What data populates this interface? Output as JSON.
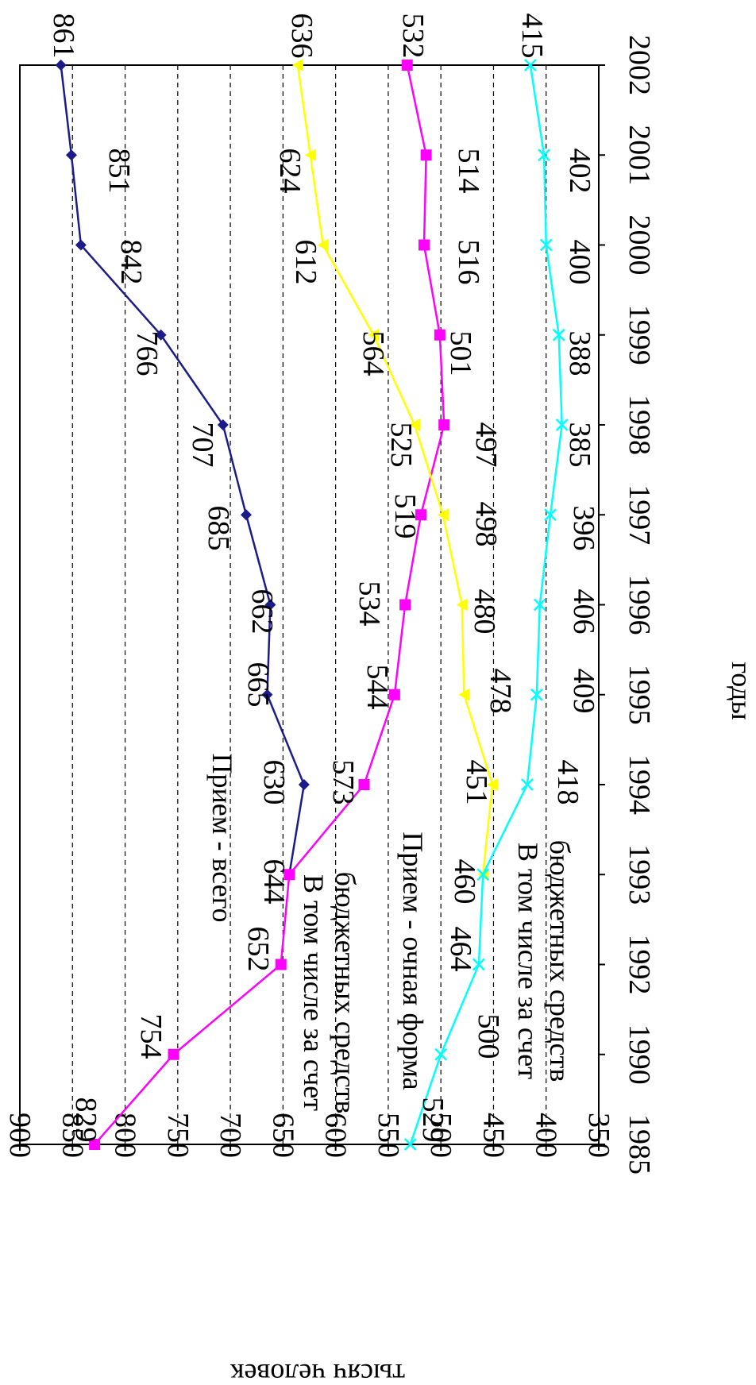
{
  "chart_data": {
    "type": "line",
    "orientation": "rotated-90-clockwise",
    "xlabel": "годы",
    "ylabel": "тысяч человек",
    "ylim": [
      350,
      900
    ],
    "yticks": [
      350,
      400,
      450,
      500,
      550,
      600,
      650,
      700,
      750,
      800,
      850,
      900
    ],
    "gridlines": [
      400,
      450,
      500,
      550,
      600,
      650,
      700,
      750,
      800,
      850
    ],
    "categories": [
      "1985",
      "1990",
      "1992",
      "1993",
      "1994",
      "1995",
      "1996",
      "1997",
      "1998",
      "1999",
      "2000",
      "2001",
      "2002"
    ],
    "series": [
      {
        "color": "#1b1b8a",
        "marker": "diamond",
        "values": [
          null,
          null,
          null,
          644,
          630,
          665,
          662,
          685,
          707,
          766,
          842,
          851,
          861
        ]
      },
      {
        "color": "#ff00ff",
        "marker": "square",
        "values": [
          829,
          754,
          652,
          644,
          573,
          544,
          534,
          519,
          497,
          501,
          516,
          514,
          532
        ]
      },
      {
        "color": "#ffff00",
        "marker": "triangle",
        "values": [
          null,
          null,
          null,
          460,
          451,
          478,
          480,
          498,
          525,
          564,
          612,
          624,
          636
        ]
      },
      {
        "color": "#00ffff",
        "marker": "x",
        "values": [
          529,
          500,
          464,
          460,
          418,
          409,
          406,
          396,
          385,
          388,
          400,
          402,
          415
        ]
      }
    ],
    "annotations": [
      {
        "text": "Прием - всего"
      },
      {
        "text": "В том числе за счет"
      },
      {
        "text": "бюджетных средств"
      },
      {
        "text": "Прием - очная форма"
      },
      {
        "text": "В том числе за счет"
      },
      {
        "text": "бюджетных средств"
      }
    ],
    "data_labels": [
      "829",
      "754",
      "652",
      "644",
      "573",
      "544",
      "534",
      "519",
      "497",
      "501",
      "516",
      "514",
      "532",
      "630",
      "665",
      "662",
      "685",
      "707",
      "766",
      "842",
      "851",
      "861",
      "460",
      "451",
      "478",
      "480",
      "498",
      "525",
      "564",
      "612",
      "624",
      "636",
      "529",
      "500",
      "464",
      "418",
      "409",
      "406",
      "396",
      "385",
      "388",
      "400",
      "402",
      "415"
    ]
  }
}
